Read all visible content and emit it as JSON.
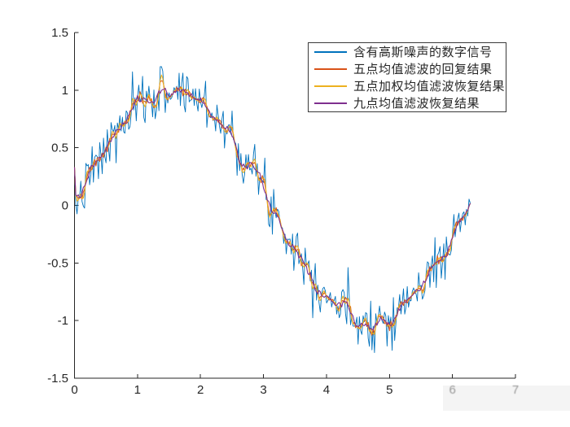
{
  "window": {
    "background": "#ffffff"
  },
  "chart_data": {
    "type": "line",
    "title": "",
    "grid": false,
    "axis_color": "#262626",
    "x_axis": {
      "range": [
        0,
        7
      ],
      "ticks": [
        0,
        1,
        2,
        3,
        4,
        5,
        6,
        7
      ],
      "tick_labels": [
        "0",
        "1",
        "2",
        "3",
        "4",
        "5",
        "6",
        "7"
      ],
      "faded_labels": [
        "6",
        "7"
      ],
      "label": ""
    },
    "y_axis": {
      "range": [
        -1.5,
        1.5
      ],
      "ticks": [
        -1.5,
        -1,
        -0.5,
        0,
        0.5,
        1,
        1.5
      ],
      "tick_labels": [
        "-1.5",
        "-1",
        "-0.5",
        "0",
        "0.5",
        "1",
        "1.5"
      ],
      "label": ""
    },
    "series": [
      {
        "name": "含有高斯噪声的数字信号",
        "color": "#0072BD",
        "role": "noisy-signal",
        "model": "sin(x) + gaussian_noise",
        "amplitude": 1,
        "noise_sigma": 0.12,
        "seed": 7,
        "n_points": 315,
        "x_start": 0,
        "x_end": 6.283
      },
      {
        "name": "五点均值滤波的回复结果",
        "color": "#D95319",
        "role": "filtered",
        "filter": "mean",
        "window": 5
      },
      {
        "name": "五点加权均值滤波恢复结果",
        "color": "#EDB120",
        "role": "filtered",
        "filter": "weighted_mean",
        "window": 5,
        "weights": [
          1,
          2,
          3,
          2,
          1
        ]
      },
      {
        "name": "九点均值滤波恢复结果",
        "color": "#7E2F8E",
        "role": "filtered",
        "filter": "mean",
        "window": 9
      }
    ],
    "legend": {
      "position": "top-right",
      "border": true
    }
  }
}
